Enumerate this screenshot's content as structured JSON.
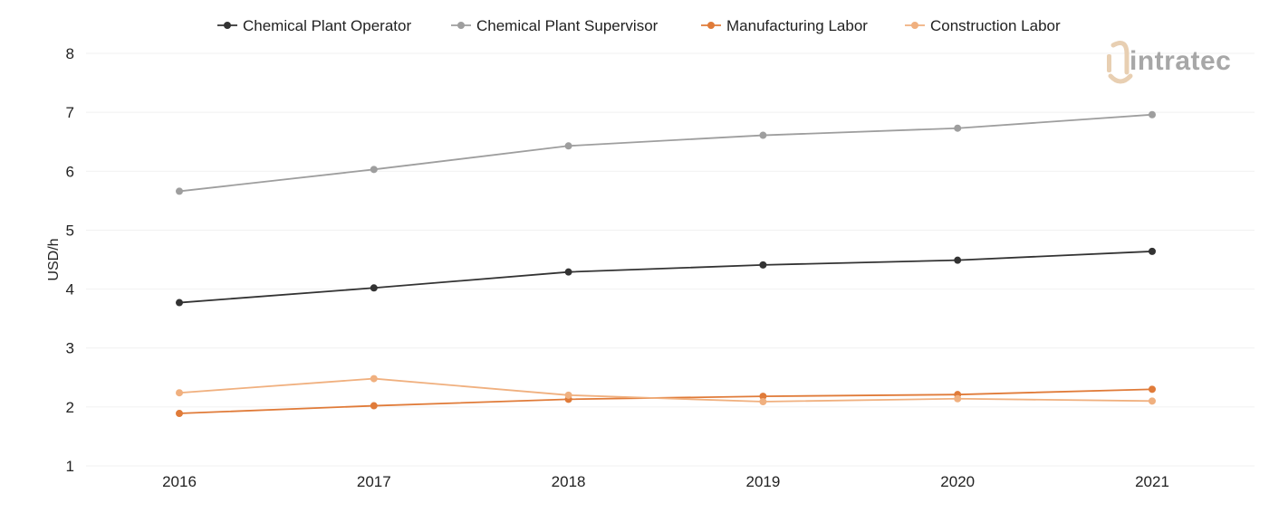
{
  "chart_data": {
    "type": "line",
    "xlabel": "",
    "ylabel": "USD/h",
    "x": [
      "2016",
      "2017",
      "2018",
      "2019",
      "2020",
      "2021"
    ],
    "ylim": [
      1,
      8
    ],
    "yticks": [
      "1",
      "2",
      "3",
      "4",
      "5",
      "6",
      "7",
      "8"
    ],
    "grid": true,
    "legend_position": "top-center",
    "series": [
      {
        "name": "Chemical Plant Operator",
        "color": "#333333",
        "values": [
          3.77,
          4.02,
          4.29,
          4.41,
          4.49,
          4.64
        ]
      },
      {
        "name": "Chemical Plant Supervisor",
        "color": "#9e9e9e",
        "values": [
          5.66,
          6.03,
          6.43,
          6.61,
          6.73,
          6.96
        ]
      },
      {
        "name": "Manufacturing Labor",
        "color": "#e07b39",
        "values": [
          1.89,
          2.02,
          2.13,
          2.18,
          2.21,
          2.3
        ]
      },
      {
        "name": "Construction Labor",
        "color": "#f0b07f",
        "values": [
          2.24,
          2.48,
          2.2,
          2.09,
          2.14,
          2.1
        ]
      }
    ]
  },
  "logo": {
    "text": "intratec",
    "icon": "intratec-logo-icon",
    "colors": [
      "#e8cfb2",
      "#a7a7a7"
    ]
  }
}
